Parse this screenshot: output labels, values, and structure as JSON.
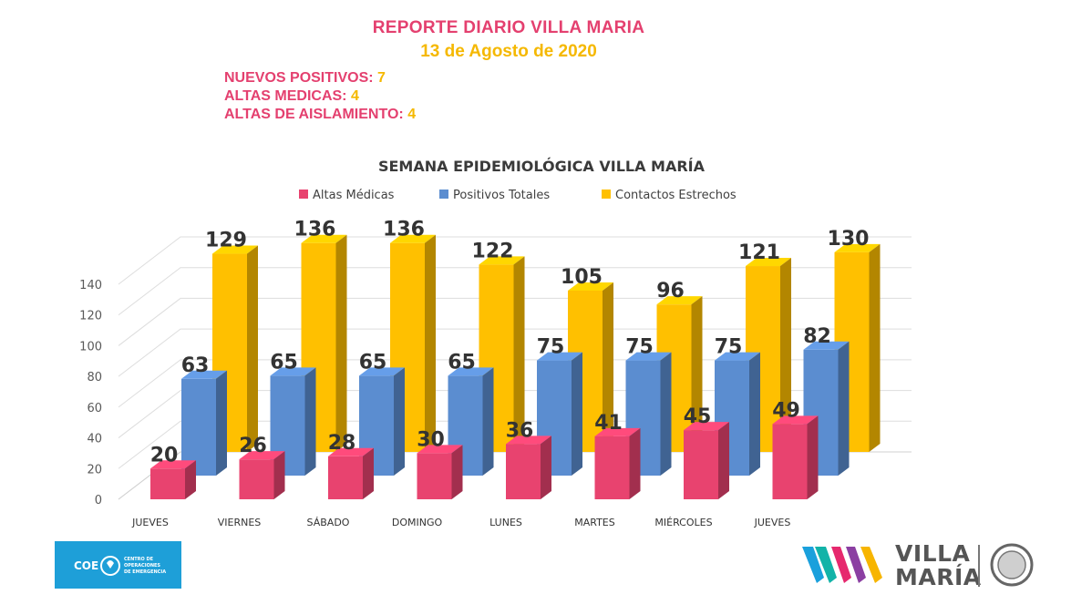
{
  "header": {
    "title": "REPORTE DIARIO VILLA MARIA",
    "date": "13 de Agosto de 2020"
  },
  "stats": [
    {
      "label": "NUEVOS POSITIVOS:",
      "value": "7"
    },
    {
      "label": "ALTAS MEDICAS:",
      "value": "4"
    },
    {
      "label": "ALTAS DE AISLAMIENTO:",
      "value": "4"
    }
  ],
  "colors": {
    "pink": "#e4406f",
    "gold": "#f5b800",
    "bar_pink": "#e8436f",
    "bar_blue": "#5b8dd0",
    "bar_gold": "#ffc000",
    "axis_text": "#595959",
    "label_text": "#333333"
  },
  "chart_data": {
    "type": "bar",
    "style": "3d-clustered-column",
    "title": "SEMANA EPIDEMIOLÓGICA VILLA MARÍA",
    "categories": [
      "JUEVES",
      "VIERNES",
      "SÁBADO",
      "DOMINGO",
      "LUNES",
      "MARTES",
      "MIÉRCOLES",
      "JUEVES"
    ],
    "series": [
      {
        "name": "Altas Médicas",
        "values": [
          20,
          26,
          28,
          30,
          36,
          41,
          45,
          49
        ]
      },
      {
        "name": "Positivos Totales",
        "values": [
          63,
          65,
          65,
          65,
          75,
          75,
          75,
          82
        ]
      },
      {
        "name": "Contactos Estrechos",
        "values": [
          129,
          136,
          136,
          122,
          105,
          96,
          121,
          130
        ]
      }
    ],
    "ylim": [
      0,
      140
    ],
    "yticks": [
      "0",
      "20",
      "40",
      "60",
      "80",
      "100",
      "120",
      "140"
    ],
    "legend_position": "top",
    "grid": true
  },
  "logos": {
    "coe": {
      "abbr": "COE",
      "name_lines": [
        "CENTRO DE",
        "OPERACIONES",
        "DE EMERGENCIA"
      ]
    },
    "villa_maria": {
      "line1": "VILLA",
      "line2": "MARÍA"
    }
  }
}
